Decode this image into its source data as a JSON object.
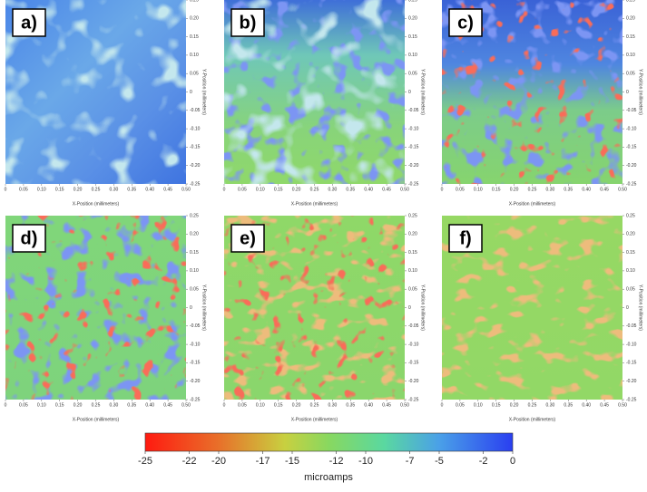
{
  "chart_data": {
    "type": "heatmap",
    "panels": [
      {
        "label": "a)"
      },
      {
        "label": "b)"
      },
      {
        "label": "c)"
      },
      {
        "label": "d)"
      },
      {
        "label": "e)"
      },
      {
        "label": "f)"
      }
    ],
    "xlabel": "X-Position (millimeters)",
    "ylabel": "Y-Position (millimeters)",
    "xlim": [
      0,
      0.5
    ],
    "ylim": [
      -0.25,
      0.25
    ],
    "xticks": [
      0,
      0.05,
      {
        "value": 0.1,
        "label": "0.10"
      },
      0.15,
      {
        "value": 0.2,
        "label": "0.20"
      },
      0.25,
      {
        "value": 0.3,
        "label": "0.30"
      },
      0.35,
      {
        "value": 0.4,
        "label": "0.40"
      },
      0.45,
      {
        "value": 0.5,
        "label": "0.50"
      }
    ],
    "yticks": [
      0.25,
      {
        "value": 0.2,
        "label": "0.20"
      },
      0.15,
      {
        "value": 0.1,
        "label": "0.10"
      },
      0.05,
      0,
      -0.05,
      {
        "value": -0.1,
        "label": "-0.10"
      },
      -0.15,
      {
        "value": -0.2,
        "label": "-0.20"
      },
      -0.25
    ],
    "colorbar": {
      "label": "microamps",
      "lim": [
        -25,
        0
      ],
      "ticks": [
        -25,
        -22,
        -20,
        -17,
        -15,
        -12,
        -10,
        -7,
        -5,
        -2,
        0
      ]
    }
  }
}
